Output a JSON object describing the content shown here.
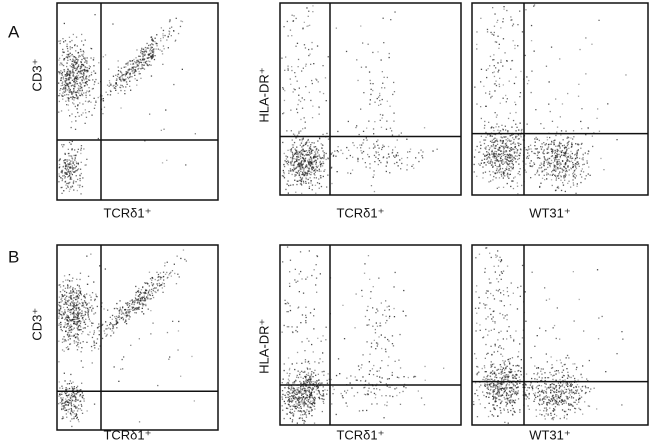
{
  "panels": [
    {
      "label": "A",
      "plots": [
        {
          "y_label": "CD3⁺",
          "x_label": "TCRδ1⁺"
        },
        {
          "y_label": "HLA-DR⁺",
          "x_label": "TCRδ1⁺"
        },
        {
          "x_label": "WT31⁺"
        }
      ]
    },
    {
      "label": "B",
      "plots": [
        {
          "y_label": "CD3⁺",
          "x_label": "TCRδ1⁺"
        },
        {
          "y_label": "HLA-DR⁺",
          "x_label": "TCRδ1⁺"
        },
        {
          "x_label": "WT31⁺"
        }
      ]
    }
  ]
}
